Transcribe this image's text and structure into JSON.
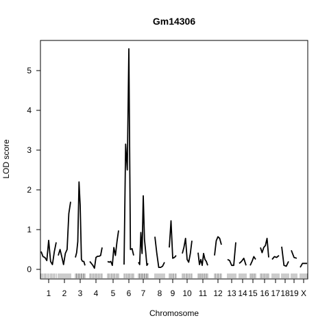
{
  "chart_data": {
    "type": "line",
    "title": "Gm14306",
    "xlabel": "Chromosome",
    "ylabel": "LOD score",
    "ylim": [
      -0.2,
      5.8
    ],
    "yticks": [
      0,
      1,
      2,
      3,
      4,
      5
    ],
    "grid": false,
    "legend": "none",
    "line_color": "#000000",
    "chromosomes": [
      {
        "label": "1",
        "lod": [
          0.45,
          0.32,
          0.3,
          0.22,
          0.73,
          0.2,
          0.12,
          0.45,
          0.68
        ]
      },
      {
        "label": "2",
        "lod": [
          0.35,
          0.5,
          0.32,
          0.12,
          0.4,
          0.5,
          1.4,
          1.7
        ]
      },
      {
        "label": "3",
        "lod": [
          0.3,
          0.42,
          0.7,
          2.2,
          1.6,
          0.25,
          0.2,
          0.2,
          0.1
        ]
      },
      {
        "label": "4",
        "lod": [
          0.2,
          0.15,
          0.1,
          0.03,
          0.3,
          0.33,
          0.33,
          0.35,
          0.55
        ]
      },
      {
        "label": "5",
        "lod": [
          0.2,
          0.18,
          0.2,
          0.1,
          0.55,
          0.35,
          0.7,
          0.98
        ]
      },
      {
        "label": "6",
        "lod": [
          0.12,
          3.15,
          2.5,
          5.55,
          0.5,
          0.52,
          0.35
        ]
      },
      {
        "label": "7",
        "lod": [
          0.18,
          0.12,
          0.93,
          0.4,
          1.85,
          0.75,
          0.45,
          0.1,
          0.15
        ]
      },
      {
        "label": "8",
        "lod": [
          0.82,
          0.4,
          0.05,
          0.05,
          0.08,
          0.18
        ]
      },
      {
        "label": "9",
        "lod": [
          0.55,
          1.22,
          0.28,
          0.3,
          0.35
        ]
      },
      {
        "label": "10",
        "lod": [
          0.4,
          0.55,
          0.78,
          0.25,
          0.18,
          0.4,
          0.72
        ]
      },
      {
        "label": "11",
        "lod": [
          0.42,
          0.12,
          0.25,
          0.1,
          0.4,
          0.25,
          0.2,
          0.1
        ]
      },
      {
        "label": "12",
        "lod": [
          0.35,
          0.72,
          0.82,
          0.78,
          0.62
        ]
      },
      {
        "label": "13",
        "lod": [
          0.25,
          0.22,
          0.1,
          0.1,
          0.68
        ]
      },
      {
        "label": "14",
        "lod": [
          0.15,
          0.2,
          0.28,
          0.1
        ]
      },
      {
        "label": "15",
        "lod": [
          0.1,
          0.2,
          0.32,
          0.25
        ]
      },
      {
        "label": "16",
        "lod": [
          0.55,
          0.42,
          0.55,
          0.6,
          0.78,
          0.3
        ]
      },
      {
        "label": "17",
        "lod": [
          0.25,
          0.32,
          0.3,
          0.35
        ]
      },
      {
        "label": "18",
        "lod": [
          0.57,
          0.1,
          0.08,
          0.2
        ]
      },
      {
        "label": "19",
        "lod": [
          0.48,
          0.3,
          0.28
        ]
      },
      {
        "label": "X",
        "lod": [
          0.05,
          0.15,
          0.15,
          0.15
        ]
      }
    ]
  }
}
